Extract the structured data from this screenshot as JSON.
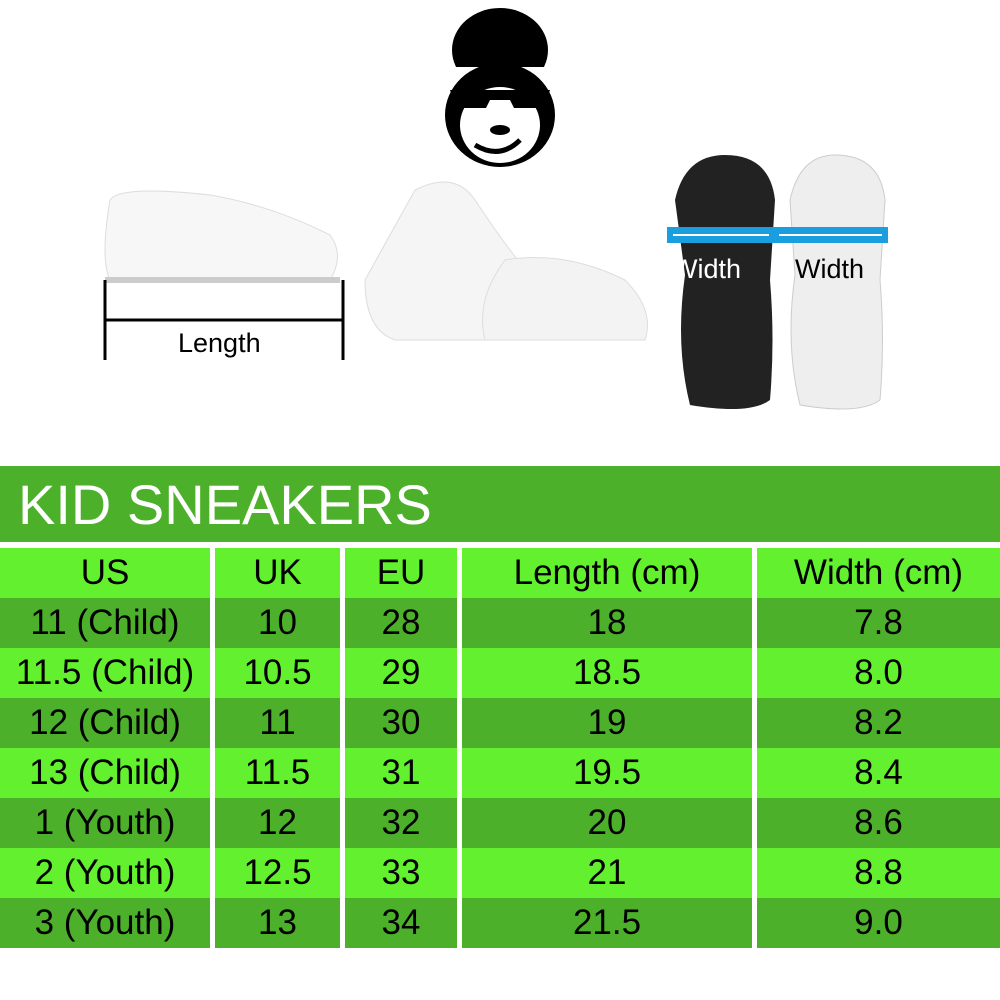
{
  "illustration": {
    "length_label": "Length",
    "width_label_left": "Width",
    "width_label_right": "Width",
    "logo_icon": "monkey-with-bowler-hat-and-sunglasses"
  },
  "title": "KID SNEAKERS",
  "colors": {
    "header": "#4cb02a",
    "row_light": "#63f02f",
    "row_dark": "#4cb02a",
    "width_arrow": "#1a9ee0"
  },
  "table": {
    "headers": [
      "US",
      "UK",
      "EU",
      "Length (cm)",
      "Width (cm)"
    ],
    "rows": [
      [
        "11 (Child)",
        "10",
        "28",
        "18",
        "7.8"
      ],
      [
        "11.5 (Child)",
        "10.5",
        "29",
        "18.5",
        "8.0"
      ],
      [
        "12 (Child)",
        "11",
        "30",
        "19",
        "8.2"
      ],
      [
        "13 (Child)",
        "11.5",
        "31",
        "19.5",
        "8.4"
      ],
      [
        "1 (Youth)",
        "12",
        "32",
        "20",
        "8.6"
      ],
      [
        "2 (Youth)",
        "12.5",
        "33",
        "21",
        "8.8"
      ],
      [
        "3 (Youth)",
        "13",
        "34",
        "21.5",
        "9.0"
      ]
    ]
  }
}
